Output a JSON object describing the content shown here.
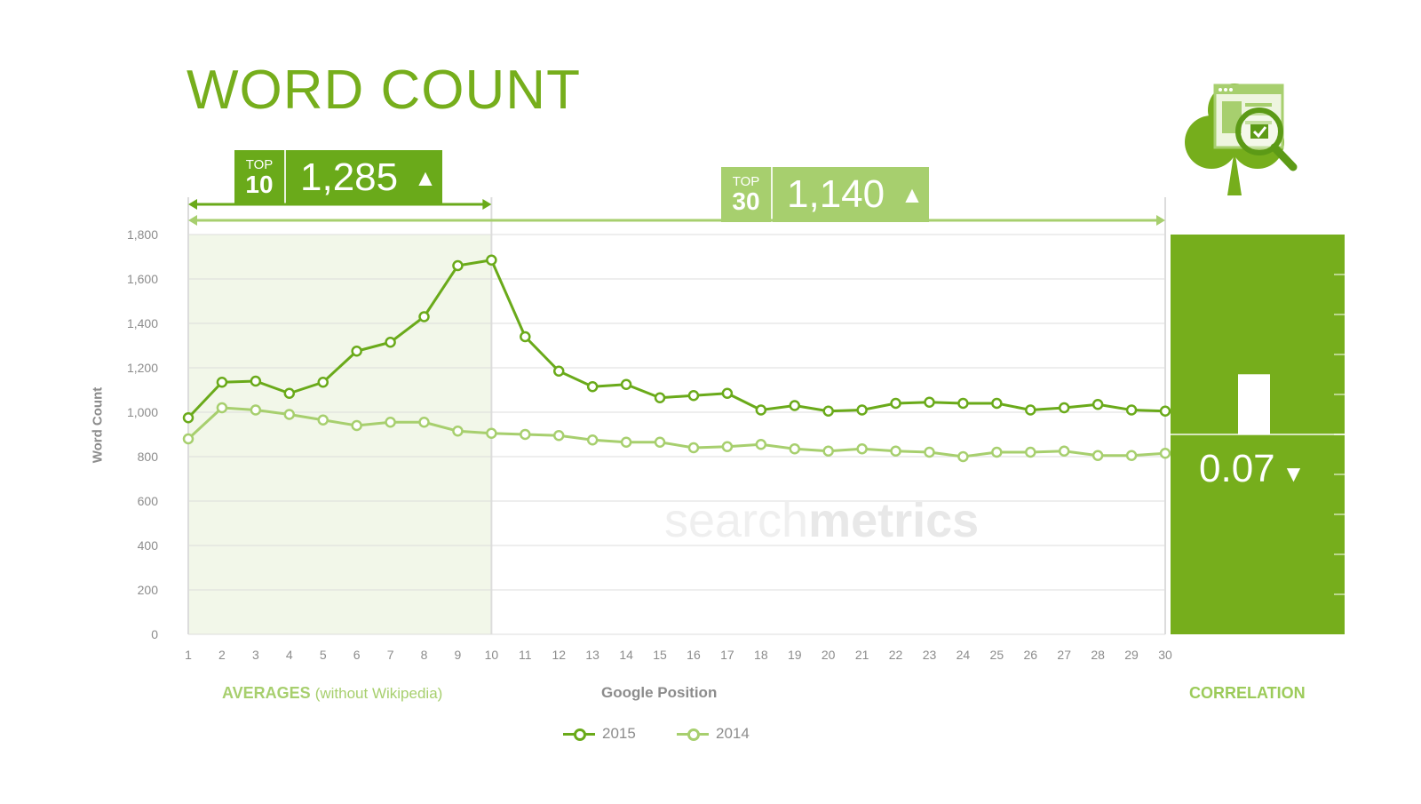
{
  "title": "WORD COUNT",
  "top10_badge": {
    "label_top": "TOP",
    "label_num": "10",
    "value": "1,285",
    "arrow": "▲"
  },
  "top30_badge": {
    "label_top": "TOP",
    "label_num": "30",
    "value": "1,140",
    "arrow": "▲"
  },
  "captions": {
    "averages": "AVERAGES",
    "averages_sub": "(without Wikipedia)",
    "x_axis": "Google Position",
    "correlation": "CORRELATION"
  },
  "correlation": {
    "value": "0.07",
    "arrow": "▼",
    "level": 0.07
  },
  "watermark": {
    "light": "search",
    "bold": "metrics"
  },
  "colors": {
    "series_2015": "#6aaa1a",
    "series_2014": "#a7cf6e",
    "correlation_panel": "#76ae1c",
    "top10_band": "#f2f7e9"
  },
  "icon": "clover-document-magnifier-icon",
  "chart_data": {
    "type": "line",
    "x": [
      1,
      2,
      3,
      4,
      5,
      6,
      7,
      8,
      9,
      10,
      11,
      12,
      13,
      14,
      15,
      16,
      17,
      18,
      19,
      20,
      21,
      22,
      23,
      24,
      25,
      26,
      27,
      28,
      29,
      30
    ],
    "series": [
      {
        "name": "2015",
        "values": [
          975,
          1135,
          1140,
          1085,
          1135,
          1275,
          1315,
          1430,
          1660,
          1685,
          1340,
          1185,
          1115,
          1125,
          1065,
          1075,
          1085,
          1010,
          1030,
          1005,
          1010,
          1040,
          1045,
          1040,
          1040,
          1010,
          1020,
          1035,
          1010,
          1005
        ]
      },
      {
        "name": "2014",
        "values": [
          880,
          1020,
          1010,
          990,
          965,
          940,
          955,
          955,
          915,
          905,
          900,
          895,
          875,
          865,
          865,
          840,
          845,
          855,
          835,
          825,
          835,
          825,
          820,
          800,
          820,
          820,
          825,
          805,
          805,
          815
        ]
      }
    ],
    "xlabel": "Google Position",
    "ylabel": "Word Count",
    "ylim": [
      0,
      1800
    ],
    "yticks": [
      0,
      200,
      400,
      600,
      800,
      1000,
      1200,
      1400,
      1600,
      1800
    ],
    "highlight_range": [
      1,
      10
    ],
    "grid": true,
    "legend": "bottom-center"
  }
}
